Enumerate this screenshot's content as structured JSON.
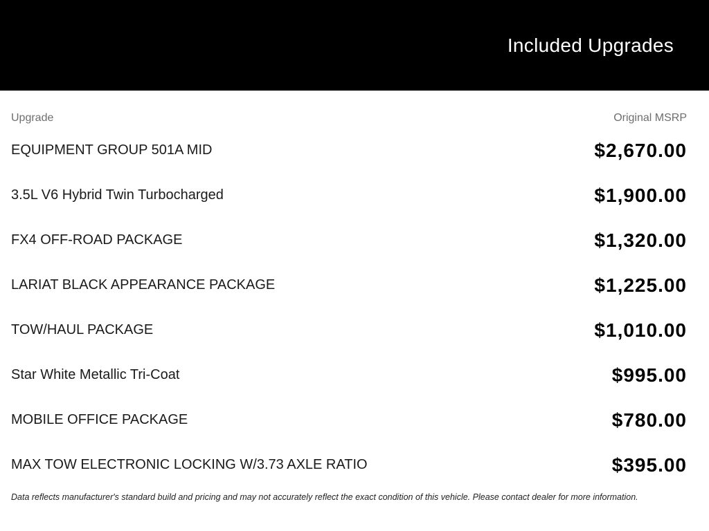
{
  "header": {
    "title": "Included Upgrades"
  },
  "table": {
    "columns": {
      "upgrade": "Upgrade",
      "msrp": "Original MSRP"
    },
    "rows": [
      {
        "name": "EQUIPMENT GROUP 501A MID",
        "price": "$2,670.00"
      },
      {
        "name": "3.5L V6 Hybrid Twin Turbocharged",
        "price": "$1,900.00"
      },
      {
        "name": "FX4 OFF-ROAD PACKAGE",
        "price": "$1,320.00"
      },
      {
        "name": "LARIAT BLACK APPEARANCE PACKAGE",
        "price": "$1,225.00"
      },
      {
        "name": "TOW/HAUL PACKAGE",
        "price": "$1,010.00"
      },
      {
        "name": "Star White Metallic Tri-Coat",
        "price": "$995.00"
      },
      {
        "name": "MOBILE OFFICE PACKAGE",
        "price": "$780.00"
      },
      {
        "name": "MAX TOW ELECTRONIC LOCKING W/3.73 AXLE RATIO",
        "price": "$395.00"
      }
    ]
  },
  "footer": {
    "disclaimer": "Data reflects manufacturer's standard build and pricing and may not accurately reflect the exact condition of this vehicle. Please contact dealer for more information."
  },
  "colors": {
    "hero_background": "#000000",
    "hero_title_text": "#ffffff",
    "column_label_text": "#6e6e6e",
    "item_name_text": "#1a1a1a",
    "price_text": "#000000",
    "page_background": "#ffffff"
  }
}
